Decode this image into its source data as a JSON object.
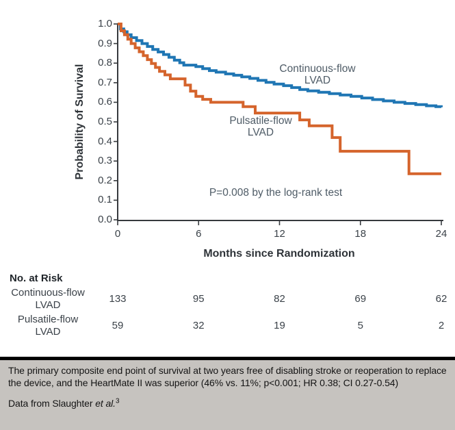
{
  "chart_data": {
    "type": "line",
    "subtype": "kaplan-meier-step",
    "title": "",
    "xlabel": "Months since Randomization",
    "ylabel": "Probability of Survival",
    "xlim": [
      0,
      24
    ],
    "ylim": [
      0.0,
      1.0
    ],
    "x_ticks": [
      0,
      6,
      12,
      18,
      24
    ],
    "y_tick_labels": [
      "1.0",
      "0.9",
      "0.8",
      "0.7",
      "0.6",
      "0.5",
      "0.4",
      "0.3",
      "0.2",
      "0.1",
      "0.0"
    ],
    "grid": false,
    "annotation": "P=0.008 by the log-rank test",
    "series": [
      {
        "name": "Continuous-flow LVAD",
        "label_line1": "Continuous-flow",
        "label_line2": "LVAD",
        "color": "#1f76b4",
        "points": [
          [
            0,
            1.0
          ],
          [
            0.2,
            0.975
          ],
          [
            0.45,
            0.96
          ],
          [
            0.7,
            0.945
          ],
          [
            1.0,
            0.93
          ],
          [
            1.4,
            0.915
          ],
          [
            1.8,
            0.9
          ],
          [
            2.2,
            0.885
          ],
          [
            2.6,
            0.87
          ],
          [
            3.0,
            0.857
          ],
          [
            3.4,
            0.844
          ],
          [
            3.8,
            0.83
          ],
          [
            4.2,
            0.815
          ],
          [
            4.6,
            0.802
          ],
          [
            4.9,
            0.79
          ],
          [
            5.8,
            0.782
          ],
          [
            6.3,
            0.772
          ],
          [
            6.8,
            0.762
          ],
          [
            7.3,
            0.754
          ],
          [
            8.0,
            0.745
          ],
          [
            8.6,
            0.738
          ],
          [
            9.2,
            0.73
          ],
          [
            9.8,
            0.722
          ],
          [
            10.4,
            0.712
          ],
          [
            11.0,
            0.702
          ],
          [
            11.6,
            0.693
          ],
          [
            12.3,
            0.685
          ],
          [
            12.9,
            0.675
          ],
          [
            13.5,
            0.665
          ],
          [
            14.1,
            0.658
          ],
          [
            14.9,
            0.651
          ],
          [
            15.7,
            0.644
          ],
          [
            16.5,
            0.637
          ],
          [
            17.3,
            0.63
          ],
          [
            18.1,
            0.622
          ],
          [
            18.9,
            0.614
          ],
          [
            19.7,
            0.607
          ],
          [
            20.5,
            0.6
          ],
          [
            21.3,
            0.594
          ],
          [
            22.1,
            0.588
          ],
          [
            22.9,
            0.582
          ],
          [
            23.6,
            0.578
          ],
          [
            24,
            0.575
          ]
        ]
      },
      {
        "name": "Pulsatile-flow LVAD",
        "label_line1": "Pulsatile-flow",
        "label_line2": "LVAD",
        "color": "#d5642c",
        "points": [
          [
            0,
            1.0
          ],
          [
            0.25,
            0.965
          ],
          [
            0.5,
            0.945
          ],
          [
            0.75,
            0.922
          ],
          [
            1.0,
            0.9
          ],
          [
            1.3,
            0.878
          ],
          [
            1.6,
            0.858
          ],
          [
            1.9,
            0.838
          ],
          [
            2.2,
            0.818
          ],
          [
            2.5,
            0.798
          ],
          [
            2.8,
            0.778
          ],
          [
            3.1,
            0.758
          ],
          [
            3.5,
            0.74
          ],
          [
            3.9,
            0.72
          ],
          [
            5.0,
            0.688
          ],
          [
            5.4,
            0.657
          ],
          [
            5.8,
            0.63
          ],
          [
            6.3,
            0.615
          ],
          [
            6.9,
            0.6
          ],
          [
            9.3,
            0.578
          ],
          [
            10.2,
            0.545
          ],
          [
            13.5,
            0.51
          ],
          [
            14.2,
            0.48
          ],
          [
            15.9,
            0.42
          ],
          [
            16.5,
            0.35
          ],
          [
            21.6,
            0.235
          ],
          [
            24,
            0.235
          ]
        ]
      }
    ]
  },
  "risk_table": {
    "title": "No. at Risk",
    "columns_months": [
      0,
      6,
      12,
      18,
      24
    ],
    "rows": [
      {
        "label_line1": "Continuous-flow",
        "label_line2": "LVAD",
        "values": [
          "133",
          "95",
          "82",
          "69",
          "62"
        ]
      },
      {
        "label_line1": "Pulsatile-flow",
        "label_line2": "LVAD",
        "values": [
          "59",
          "32",
          "19",
          "5",
          "2"
        ]
      }
    ]
  },
  "caption": {
    "body": "The primary composite end point of survival at two years free of disabling stroke or reoperation to replace the device, and the HeartMate II was superior (46% vs. 11%; p<0.001; HR 0.38; CI 0.27-0.54)",
    "source_prefix": "Data from Slaughter ",
    "source_italic": "et al.",
    "source_superscript": "3"
  },
  "colors": {
    "continuous_flow": "#1f76b4",
    "pulsatile_flow": "#d5642c",
    "axis": "#36393d",
    "tick_text": "#3a4148",
    "annotation_text": "#4e5b66",
    "caption_background": "#c6c3bf",
    "caption_border": "#000000"
  }
}
